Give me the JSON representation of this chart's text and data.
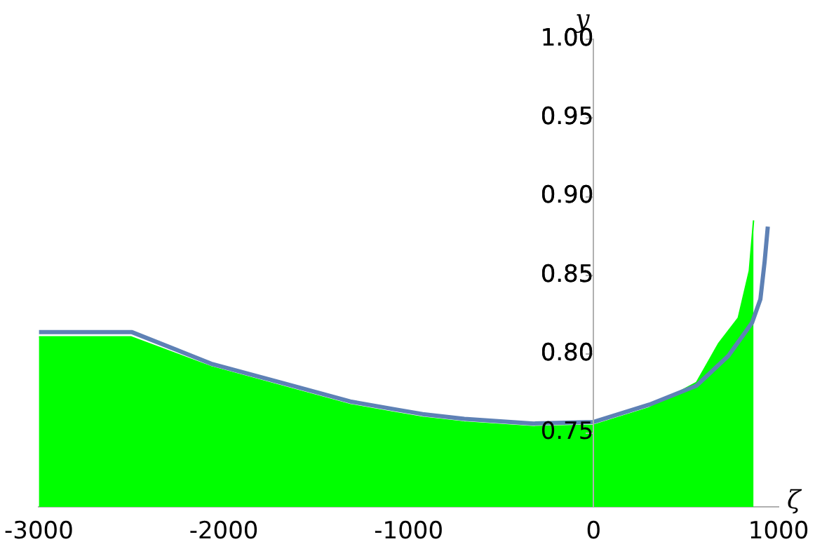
{
  "chart_data": {
    "type": "line",
    "xlabel": "ζ",
    "ylabel": "y",
    "xlim": [
      -3000,
      1000
    ],
    "ylim": [
      0.703,
      1.0
    ],
    "xticks": [
      -3000,
      -2000,
      -1000,
      0,
      1000
    ],
    "yticks": [
      0.75,
      {
        "value": 0.8,
        "label": "0.80"
      },
      0.85,
      {
        "value": 0.9,
        "label": "0.90"
      },
      0.95,
      {
        "value": 1.0,
        "label": "1.00"
      }
    ],
    "grid": false,
    "legend": false,
    "marker": "none",
    "series": [
      {
        "type": "area",
        "color": "#00ff00",
        "x": [
          -3000,
          -2500,
          -2068,
          -1692,
          -1316,
          -1075,
          -925,
          -699,
          -323,
          0,
          301,
          556,
          677,
          782,
          842,
          865
        ],
        "values": [
          0.811,
          0.811,
          0.792,
          0.78,
          0.768,
          0.763,
          0.76,
          0.757,
          0.754,
          0.755,
          0.766,
          0.782,
          0.807,
          0.823,
          0.853,
          0.885
        ]
      },
      {
        "type": "line",
        "color": "#5e81b5",
        "x": [
          -3000,
          -2496,
          -2068,
          -1692,
          -1316,
          -1075,
          -925,
          -699,
          -323,
          0,
          301,
          556,
          729,
          857,
          902,
          925,
          942
        ],
        "values": [
          0.814,
          0.814,
          0.794,
          0.782,
          0.77,
          0.765,
          0.762,
          0.759,
          0.756,
          0.757,
          0.768,
          0.78,
          0.799,
          0.82,
          0.835,
          0.859,
          0.881
        ]
      }
    ]
  }
}
